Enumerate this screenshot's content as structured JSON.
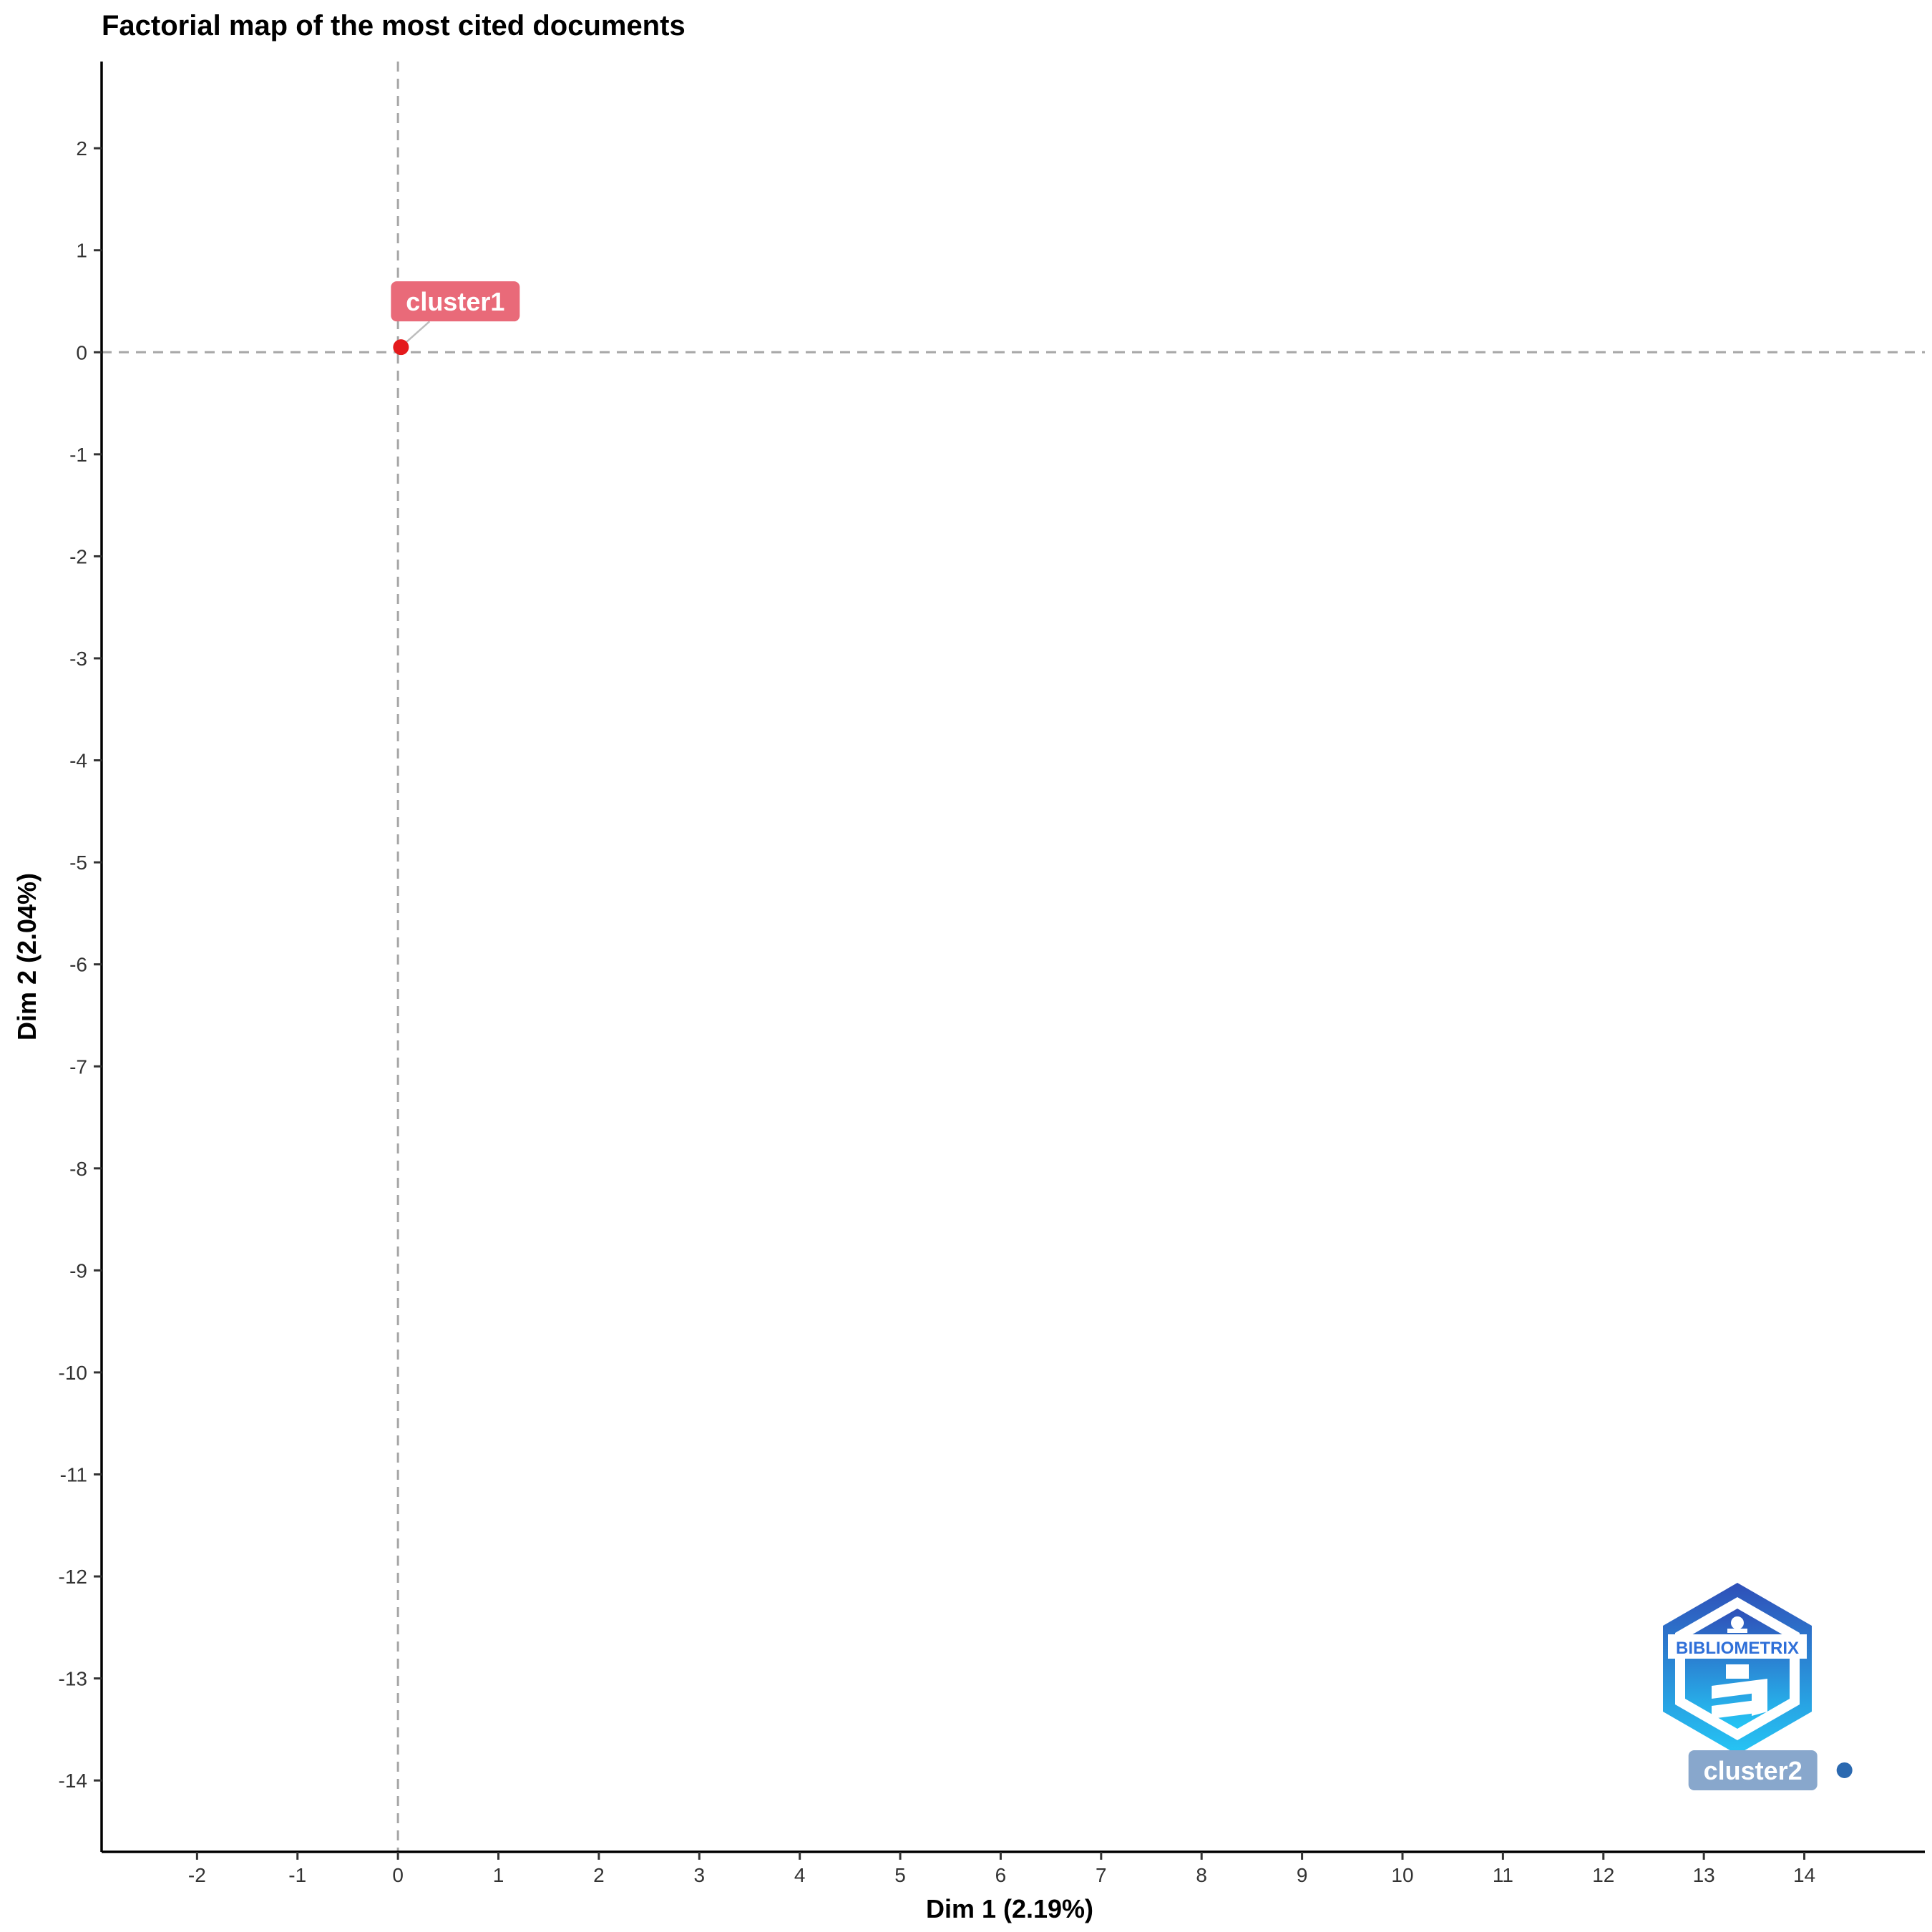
{
  "chart_data": {
    "type": "scatter",
    "title": "Factorial map of the most cited documents",
    "xlabel": "Dim 1 (2.19%)",
    "ylabel": "Dim 2 (2.04%)",
    "xlim": [
      -2.95,
      15.2
    ],
    "ylim": [
      -14.7,
      2.85
    ],
    "xticks": [
      -2,
      -1,
      0,
      1,
      2,
      3,
      4,
      5,
      6,
      7,
      8,
      9,
      10,
      11,
      12,
      13,
      14
    ],
    "yticks": [
      2,
      1,
      0,
      -1,
      -2,
      -3,
      -4,
      -5,
      -6,
      -7,
      -8,
      -9,
      -10,
      -11,
      -12,
      -13,
      -14
    ],
    "reference_lines": {
      "x": 0,
      "y": 0,
      "style": "dashed"
    },
    "grid": false,
    "points": [
      {
        "name": "cluster1",
        "x": 0.03,
        "y": 0.05,
        "color": "#E41A1C",
        "label_bg": "#E96A79"
      },
      {
        "name": "cluster2",
        "x": 14.4,
        "y": -13.9,
        "color": "#2B69B0",
        "label_bg": "#88A7CC"
      }
    ],
    "logo_text": "BIBLIOMETRIX"
  }
}
